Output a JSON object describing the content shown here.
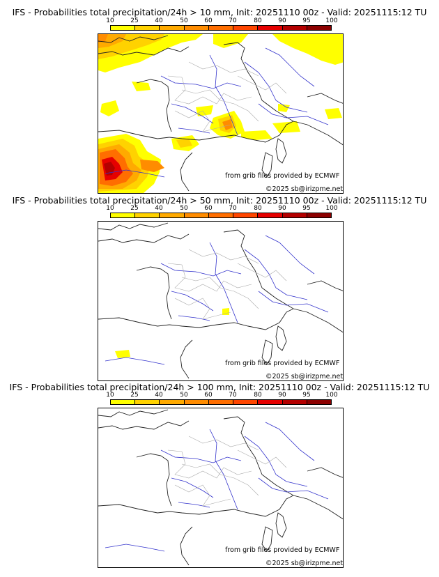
{
  "colorbar": {
    "ticks": [
      "10",
      "25",
      "40",
      "50",
      "60",
      "70",
      "80",
      "90",
      "95",
      "100"
    ],
    "colors": [
      "#ffff00",
      "#ffd200",
      "#ffaa00",
      "#ff8c00",
      "#ff6e00",
      "#ff4600",
      "#e60000",
      "#b40000",
      "#8c0000",
      "#5a0000"
    ]
  },
  "panels": [
    {
      "title": "IFS - Probabilities total precipitation/24h > 10 mm, Init: 20251110 00z - Valid: 20251115:12 TU",
      "credit": "from grib files provided by ECMWF",
      "copyright": "©2025 sb@irizpme.net"
    },
    {
      "title": "IFS - Probabilities total precipitation/24h > 50 mm, Init: 20251110 00z - Valid: 20251115:12 TU",
      "credit": "from grib files provided by ECMWF",
      "copyright": "©2025 sb@irizpme.net"
    },
    {
      "title": "IFS - Probabilities total precipitation/24h > 100 mm, Init: 20251110 00z - Valid: 20251115:12 TU",
      "credit": "from grib files provided by ECMWF",
      "copyright": "©2025 sb@irizpme.net"
    }
  ]
}
